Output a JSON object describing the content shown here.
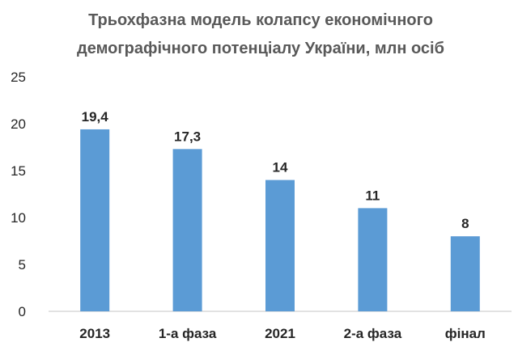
{
  "chart_data": {
    "type": "bar",
    "title_lines": [
      "Трьохфазна модель колапсу економічного",
      "демографічного потенціалу України, млн осіб"
    ],
    "categories": [
      "2013",
      "1-а фаза",
      "2021",
      "2-а фаза",
      "фінал"
    ],
    "values": [
      19.4,
      17.3,
      14,
      11,
      8
    ],
    "value_labels": [
      "19,4",
      "17,3",
      "14",
      "11",
      "8"
    ],
    "yticks": [
      "0",
      "5",
      "10",
      "15",
      "20",
      "25"
    ],
    "ylim": [
      0,
      25
    ],
    "grid": false,
    "bar_color": "#5b9bd5",
    "axis_color": "#d9d9d9",
    "title_color": "#595959",
    "label_color": "#262626"
  }
}
